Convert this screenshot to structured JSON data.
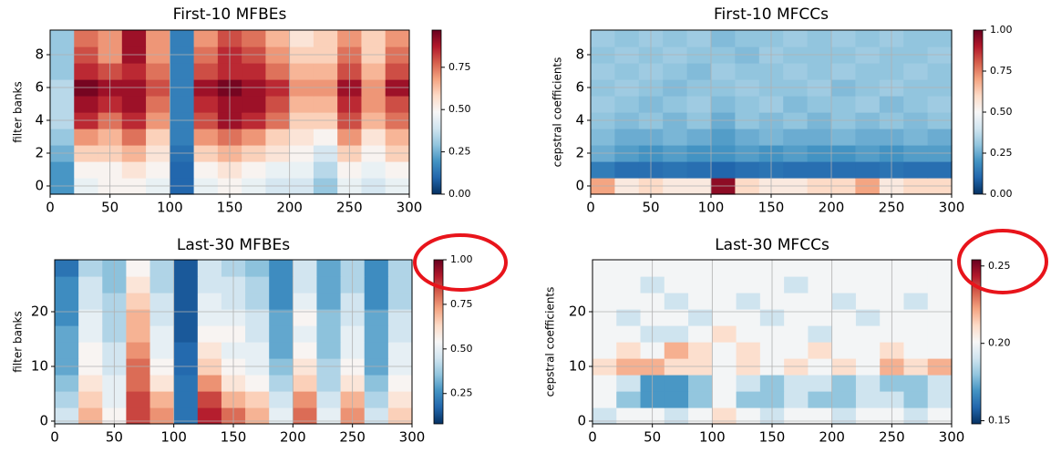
{
  "chart_data": [
    {
      "type": "heatmap",
      "title": "First-10 MFBEs",
      "ylabel": "filter banks",
      "xlim": [
        0,
        300
      ],
      "ylim": [
        -0.5,
        9.5
      ],
      "clim": [
        0,
        0.97
      ],
      "xticks": [
        0,
        50,
        100,
        150,
        200,
        250,
        300
      ],
      "yticks": [
        0,
        2,
        4,
        6,
        8
      ],
      "cticks": [
        {
          "value": 0,
          "label": "0.00"
        },
        {
          "value": 0.25,
          "label": "0.25"
        },
        {
          "value": 0.5,
          "label": "0.50"
        },
        {
          "value": 0.75,
          "label": "0.75"
        }
      ],
      "grid": true,
      "colormap": [
        "#053061",
        "#2166ac",
        "#4393c3",
        "#92c5de",
        "#d1e5f0",
        "#f7f7f7",
        "#fddbc7",
        "#f4a582",
        "#d6604d",
        "#b2182b",
        "#67001f"
      ],
      "values": [
        [
          0.2,
          0.45,
          0.5,
          0.5,
          0.45,
          0.1,
          0.45,
          0.5,
          0.45,
          0.4,
          0.4,
          0.3,
          0.45,
          0.4,
          0.45
        ],
        [
          0.2,
          0.5,
          0.5,
          0.55,
          0.5,
          0.1,
          0.5,
          0.55,
          0.5,
          0.45,
          0.45,
          0.35,
          0.5,
          0.45,
          0.5
        ],
        [
          0.25,
          0.6,
          0.6,
          0.65,
          0.55,
          0.12,
          0.6,
          0.65,
          0.6,
          0.55,
          0.5,
          0.4,
          0.6,
          0.5,
          0.6
        ],
        [
          0.3,
          0.7,
          0.65,
          0.75,
          0.6,
          0.15,
          0.7,
          0.75,
          0.7,
          0.6,
          0.55,
          0.5,
          0.7,
          0.55,
          0.65
        ],
        [
          0.35,
          0.85,
          0.75,
          0.85,
          0.7,
          0.15,
          0.8,
          0.9,
          0.85,
          0.75,
          0.6,
          0.6,
          0.8,
          0.65,
          0.75
        ],
        [
          0.35,
          0.9,
          0.85,
          0.9,
          0.75,
          0.15,
          0.85,
          0.9,
          0.9,
          0.8,
          0.65,
          0.65,
          0.85,
          0.7,
          0.8
        ],
        [
          0.35,
          0.95,
          0.9,
          0.9,
          0.8,
          0.15,
          0.9,
          0.95,
          0.9,
          0.85,
          0.7,
          0.7,
          0.9,
          0.7,
          0.9
        ],
        [
          0.3,
          0.85,
          0.8,
          0.85,
          0.75,
          0.15,
          0.8,
          0.85,
          0.85,
          0.75,
          0.65,
          0.65,
          0.8,
          0.65,
          0.8
        ],
        [
          0.3,
          0.8,
          0.7,
          0.9,
          0.7,
          0.15,
          0.75,
          0.85,
          0.8,
          0.7,
          0.6,
          0.6,
          0.75,
          0.6,
          0.75
        ],
        [
          0.3,
          0.75,
          0.7,
          0.9,
          0.7,
          0.15,
          0.7,
          0.8,
          0.75,
          0.65,
          0.55,
          0.6,
          0.7,
          0.6,
          0.7
        ]
      ]
    },
    {
      "type": "heatmap",
      "title": "First-10 MFCCs",
      "ylabel": "cepstral coefficients",
      "xlim": [
        0,
        300
      ],
      "ylim": [
        -0.5,
        9.5
      ],
      "clim": [
        0,
        1
      ],
      "xticks": [
        0,
        50,
        100,
        150,
        200,
        250,
        300
      ],
      "yticks": [
        0,
        2,
        4,
        6,
        8
      ],
      "cticks": [
        {
          "value": 0,
          "label": "0.00"
        },
        {
          "value": 0.25,
          "label": "0.25"
        },
        {
          "value": 0.5,
          "label": "0.50"
        },
        {
          "value": 0.75,
          "label": "0.75"
        },
        {
          "value": 1,
          "label": "1.00"
        }
      ],
      "grid": true,
      "colormap": [
        "#053061",
        "#2166ac",
        "#4393c3",
        "#92c5de",
        "#d1e5f0",
        "#f7f7f7",
        "#fddbc7",
        "#f4a582",
        "#d6604d",
        "#b2182b",
        "#67001f"
      ],
      "values": [
        [
          0.7,
          0.55,
          0.6,
          0.55,
          0.55,
          0.95,
          0.6,
          0.55,
          0.55,
          0.6,
          0.6,
          0.7,
          0.55,
          0.6,
          0.6
        ],
        [
          0.15,
          0.12,
          0.12,
          0.13,
          0.12,
          0.1,
          0.12,
          0.13,
          0.12,
          0.12,
          0.12,
          0.12,
          0.13,
          0.12,
          0.12
        ],
        [
          0.25,
          0.22,
          0.2,
          0.22,
          0.2,
          0.2,
          0.22,
          0.2,
          0.22,
          0.2,
          0.2,
          0.22,
          0.2,
          0.22,
          0.22
        ],
        [
          0.28,
          0.25,
          0.25,
          0.27,
          0.25,
          0.22,
          0.25,
          0.27,
          0.25,
          0.25,
          0.27,
          0.25,
          0.25,
          0.27,
          0.25
        ],
        [
          0.3,
          0.28,
          0.3,
          0.27,
          0.3,
          0.25,
          0.3,
          0.28,
          0.3,
          0.27,
          0.3,
          0.28,
          0.3,
          0.28,
          0.3
        ],
        [
          0.32,
          0.3,
          0.28,
          0.3,
          0.32,
          0.28,
          0.3,
          0.32,
          0.28,
          0.3,
          0.3,
          0.32,
          0.28,
          0.3,
          0.32
        ],
        [
          0.3,
          0.32,
          0.3,
          0.28,
          0.3,
          0.3,
          0.32,
          0.3,
          0.3,
          0.32,
          0.28,
          0.3,
          0.32,
          0.3,
          0.3
        ],
        [
          0.32,
          0.3,
          0.32,
          0.3,
          0.28,
          0.32,
          0.3,
          0.3,
          0.32,
          0.3,
          0.32,
          0.3,
          0.3,
          0.32,
          0.3
        ],
        [
          0.3,
          0.32,
          0.3,
          0.32,
          0.3,
          0.3,
          0.28,
          0.32,
          0.3,
          0.3,
          0.3,
          0.32,
          0.3,
          0.3,
          0.32
        ],
        [
          0.32,
          0.3,
          0.32,
          0.3,
          0.32,
          0.28,
          0.3,
          0.3,
          0.32,
          0.3,
          0.32,
          0.3,
          0.32,
          0.3,
          0.3
        ]
      ]
    },
    {
      "type": "heatmap",
      "title": "Last-30 MFBEs",
      "ylabel": "filter banks",
      "xlim": [
        0,
        300
      ],
      "ylim": [
        -0.5,
        29.5
      ],
      "clim": [
        0.08,
        1
      ],
      "xticks": [
        0,
        50,
        100,
        150,
        200,
        250,
        300
      ],
      "yticks": [
        0,
        10,
        20
      ],
      "cticks": [
        {
          "value": 0.25,
          "label": "0.25"
        },
        {
          "value": 0.5,
          "label": "0.50"
        },
        {
          "value": 0.75,
          "label": "0.75"
        },
        {
          "value": 1,
          "label": "1.00"
        }
      ],
      "grid": true,
      "colormap": [
        "#053061",
        "#2166ac",
        "#4393c3",
        "#92c5de",
        "#d1e5f0",
        "#f7f7f7",
        "#fddbc7",
        "#f4a582",
        "#d6604d",
        "#b2182b",
        "#67001f"
      ],
      "values": [
        [
          0.45,
          0.7,
          0.55,
          0.85,
          0.75,
          0.2,
          0.9,
          0.8,
          0.7,
          0.5,
          0.8,
          0.5,
          0.75,
          0.45,
          0.65
        ],
        [
          0.4,
          0.65,
          0.5,
          0.85,
          0.7,
          0.2,
          0.85,
          0.7,
          0.65,
          0.45,
          0.75,
          0.45,
          0.7,
          0.4,
          0.6
        ],
        [
          0.35,
          0.6,
          0.5,
          0.8,
          0.6,
          0.2,
          0.75,
          0.6,
          0.55,
          0.4,
          0.65,
          0.4,
          0.6,
          0.35,
          0.55
        ],
        [
          0.3,
          0.55,
          0.45,
          0.8,
          0.55,
          0.18,
          0.65,
          0.55,
          0.5,
          0.35,
          0.6,
          0.4,
          0.55,
          0.3,
          0.5
        ],
        [
          0.3,
          0.55,
          0.45,
          0.75,
          0.5,
          0.18,
          0.6,
          0.5,
          0.5,
          0.3,
          0.55,
          0.35,
          0.5,
          0.3,
          0.5
        ],
        [
          0.3,
          0.5,
          0.4,
          0.7,
          0.5,
          0.15,
          0.55,
          0.55,
          0.45,
          0.3,
          0.5,
          0.35,
          0.5,
          0.3,
          0.45
        ],
        [
          0.25,
          0.5,
          0.4,
          0.7,
          0.45,
          0.15,
          0.5,
          0.5,
          0.45,
          0.3,
          0.55,
          0.35,
          0.45,
          0.3,
          0.45
        ],
        [
          0.25,
          0.45,
          0.4,
          0.65,
          0.45,
          0.15,
          0.5,
          0.45,
          0.4,
          0.25,
          0.5,
          0.3,
          0.45,
          0.25,
          0.4
        ],
        [
          0.25,
          0.45,
          0.35,
          0.6,
          0.4,
          0.15,
          0.45,
          0.45,
          0.4,
          0.25,
          0.45,
          0.3,
          0.4,
          0.25,
          0.4
        ],
        [
          0.2,
          0.4,
          0.35,
          0.55,
          0.4,
          0.15,
          0.45,
          0.4,
          0.35,
          0.25,
          0.45,
          0.3,
          0.4,
          0.25,
          0.4
        ]
      ]
    },
    {
      "type": "heatmap",
      "title": "Last-30 MFCCs",
      "ylabel": "cepstral coefficients",
      "xlim": [
        0,
        300
      ],
      "ylim": [
        -0.5,
        29.5
      ],
      "clim": [
        0.148,
        0.254
      ],
      "xticks": [
        0,
        50,
        100,
        150,
        200,
        250,
        300
      ],
      "yticks": [
        0,
        10,
        20
      ],
      "cticks": [
        0.15,
        {
          "value": 0.2,
          "label": "0.20"
        },
        0.25
      ],
      "grid": true,
      "colormap": [
        "#053061",
        "#2166ac",
        "#4393c3",
        "#92c5de",
        "#d1e5f0",
        "#f7f7f7",
        "#fddbc7",
        "#f4a582",
        "#d6604d",
        "#b2182b",
        "#67001f"
      ],
      "values": [
        [
          0.19,
          0.2,
          0.2,
          0.19,
          0.2,
          0.21,
          0.2,
          0.19,
          0.2,
          0.2,
          0.19,
          0.2,
          0.2,
          0.19,
          0.2
        ],
        [
          0.2,
          0.18,
          0.17,
          0.17,
          0.18,
          0.2,
          0.18,
          0.18,
          0.19,
          0.18,
          0.18,
          0.19,
          0.19,
          0.18,
          0.19
        ],
        [
          0.2,
          0.19,
          0.17,
          0.17,
          0.18,
          0.2,
          0.19,
          0.18,
          0.19,
          0.19,
          0.18,
          0.19,
          0.18,
          0.18,
          0.19
        ],
        [
          0.21,
          0.22,
          0.22,
          0.21,
          0.21,
          0.2,
          0.21,
          0.2,
          0.21,
          0.2,
          0.21,
          0.2,
          0.22,
          0.21,
          0.22
        ],
        [
          0.2,
          0.21,
          0.2,
          0.22,
          0.21,
          0.2,
          0.21,
          0.2,
          0.2,
          0.21,
          0.2,
          0.2,
          0.21,
          0.2,
          0.2
        ],
        [
          0.2,
          0.2,
          0.19,
          0.19,
          0.2,
          0.21,
          0.2,
          0.2,
          0.2,
          0.19,
          0.2,
          0.2,
          0.2,
          0.2,
          0.2
        ],
        [
          0.2,
          0.19,
          0.2,
          0.2,
          0.19,
          0.2,
          0.2,
          0.19,
          0.2,
          0.2,
          0.2,
          0.19,
          0.2,
          0.2,
          0.2
        ],
        [
          0.2,
          0.2,
          0.2,
          0.19,
          0.2,
          0.2,
          0.19,
          0.2,
          0.2,
          0.2,
          0.19,
          0.2,
          0.2,
          0.19,
          0.2
        ],
        [
          0.2,
          0.2,
          0.19,
          0.2,
          0.2,
          0.2,
          0.2,
          0.2,
          0.19,
          0.2,
          0.2,
          0.2,
          0.2,
          0.2,
          0.2
        ],
        [
          0.2,
          0.2,
          0.2,
          0.2,
          0.2,
          0.2,
          0.2,
          0.2,
          0.2,
          0.2,
          0.2,
          0.2,
          0.2,
          0.2,
          0.2
        ]
      ]
    }
  ]
}
